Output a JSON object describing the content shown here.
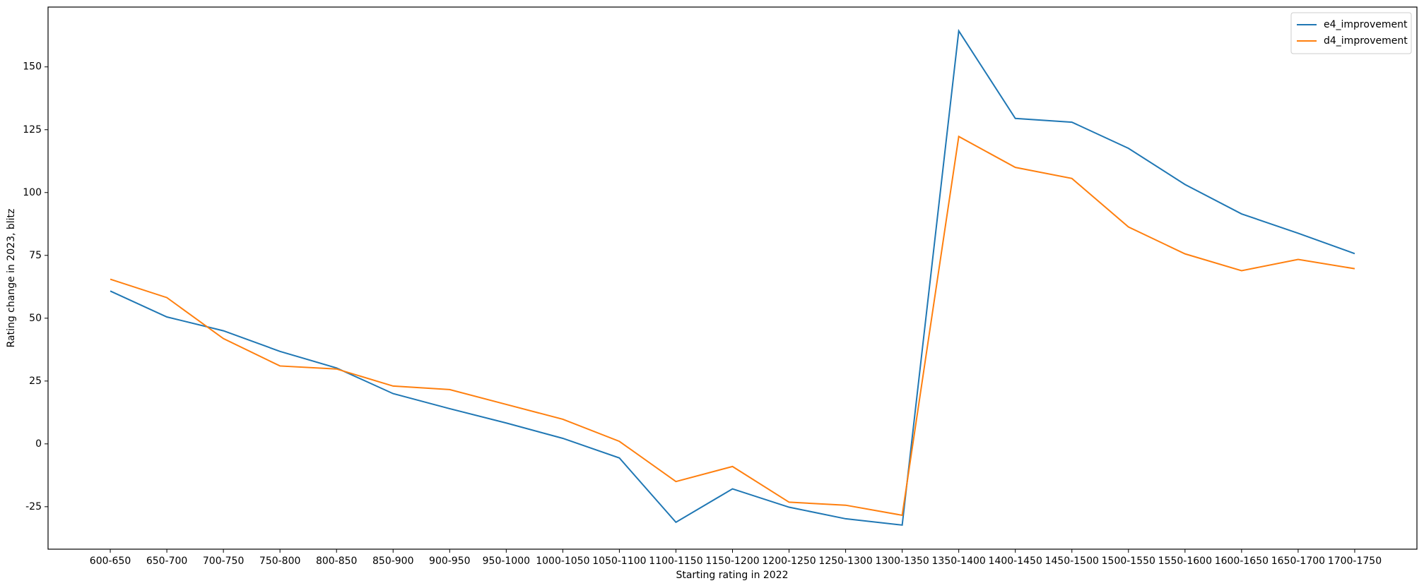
{
  "chart_data": {
    "type": "line",
    "x_label": "Starting rating in 2022",
    "y_label": "Rating change in 2023, blitz",
    "categories": [
      "600-650",
      "650-700",
      "700-750",
      "750-800",
      "800-850",
      "850-900",
      "900-950",
      "950-1000",
      "1000-1050",
      "1050-1100",
      "1100-1150",
      "1150-1200",
      "1200-1250",
      "1250-1300",
      "1300-1350",
      "1350-1400",
      "1400-1450",
      "1450-1500",
      "1500-1550",
      "1550-1600",
      "1600-1650",
      "1650-1700",
      "1700-1750"
    ],
    "series": [
      {
        "name": "e4_improvement",
        "color": "#1f77b4",
        "values": [
          60.8,
          50.5,
          45,
          36.8,
          30.2,
          20,
          14,
          8.3,
          2.2,
          -5.6,
          -31.2,
          -17.9,
          -25.2,
          -29.8,
          -32.3,
          164.3,
          129.5,
          128,
          117.6,
          103.2,
          91.5,
          83.8,
          75.7
        ]
      },
      {
        "name": "d4_improvement",
        "color": "#ff7f0e",
        "values": [
          65.5,
          58.2,
          41.9,
          31,
          29.8,
          23,
          21.6,
          15.7,
          9.8,
          1,
          -15,
          -9,
          -23.2,
          -24.4,
          -28.4,
          122.3,
          110,
          105.6,
          86.3,
          75.6,
          68.9,
          73.4,
          69.7
        ]
      }
    ],
    "ylim": [
      -41.9,
      173.8
    ],
    "yticks": [
      -25,
      0,
      25,
      50,
      75,
      100,
      125,
      150
    ],
    "legend": "upper right"
  }
}
